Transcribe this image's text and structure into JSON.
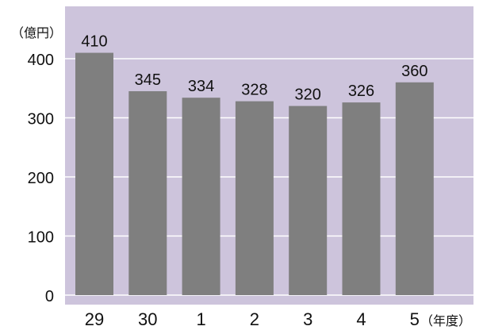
{
  "chart_data": {
    "type": "bar",
    "categories": [
      "29",
      "30",
      "1",
      "2",
      "3",
      "4",
      "5"
    ],
    "values": [
      410,
      345,
      334,
      328,
      320,
      326,
      360
    ],
    "data_labels": [
      "410",
      "345",
      "334",
      "328",
      "320",
      "326",
      "360"
    ],
    "y_unit_label": "（億円）",
    "x_unit_label": "（年度）",
    "y_ticks": [
      0,
      100,
      200,
      300,
      400
    ],
    "ylim": [
      0,
      430
    ],
    "grid": true,
    "colors": {
      "plot_background": "#cdc4dc",
      "bar": "#7f7f7f",
      "gridline": "#ffffff"
    }
  }
}
